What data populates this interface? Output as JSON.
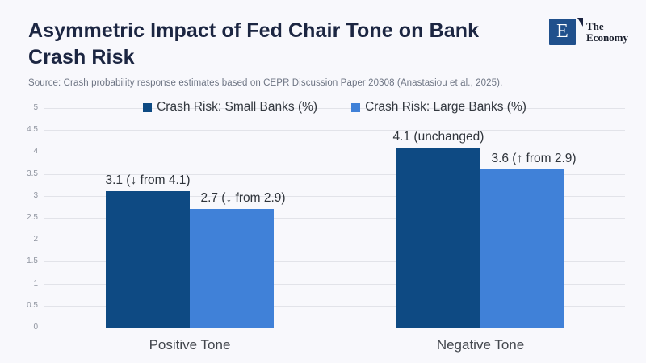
{
  "header": {
    "title_line1": "Asymmetric Impact of Fed Chair Tone on Bank",
    "title_line2": "Crash Risk",
    "source": "Source: Crash probability response estimates based on CEPR Discussion Paper 20308 (Anastasiou et al., 2025)."
  },
  "logo": {
    "letter": "E",
    "name_line1": "The",
    "name_line2": "Economy"
  },
  "colors": {
    "background": "#f8f8fc",
    "title": "#1c2642",
    "gridline": "#e2e3e9",
    "small_banks": "#0e4a83",
    "large_banks": "#4081d8"
  },
  "chart_data": {
    "type": "bar",
    "title": "Asymmetric Impact of Fed Chair Tone on Bank Crash Risk",
    "categories": [
      "Positive Tone",
      "Negative Tone"
    ],
    "series": [
      {
        "name": "Crash Risk: Small Banks (%)",
        "color": "#0e4a83",
        "values": [
          3.1,
          4.1
        ],
        "labels": [
          "3.1 (↓ from 4.1)",
          "4.1 (unchanged)"
        ]
      },
      {
        "name": "Crash Risk: Large Banks (%)",
        "color": "#4081d8",
        "values": [
          2.7,
          3.6
        ],
        "labels": [
          "2.7 (↓ from 2.9)",
          "3.6 (↑ from 2.9)"
        ]
      }
    ],
    "xlabel": "",
    "ylabel": "",
    "ylim": [
      0,
      5
    ],
    "ytick_step": 0.5,
    "grid": true,
    "legend_position": "top"
  }
}
